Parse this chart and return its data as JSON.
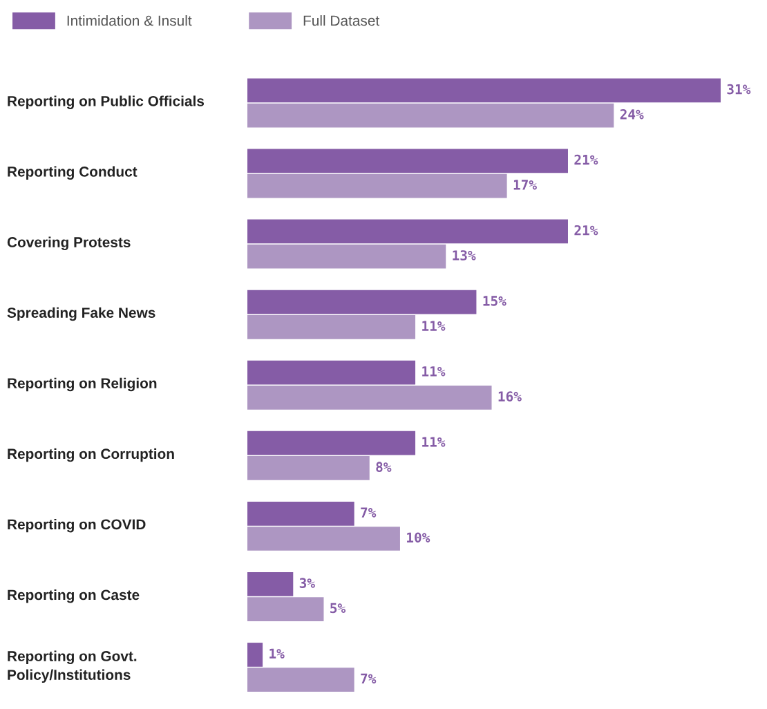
{
  "chart_data": {
    "type": "bar",
    "orientation": "horizontal",
    "legend": "top left",
    "categories": [
      "Reporting on Public Officials",
      "Reporting Conduct",
      "Covering Protests",
      "Spreading Fake News",
      "Reporting on Religion",
      "Reporting on Corruption",
      "Reporting on COVID",
      "Reporting on Caste",
      "Reporting on Govt.\nPolicy/Institutions"
    ],
    "series": [
      {
        "name": "Intimidation & Insult",
        "color": "#855ca6",
        "values": [
          31,
          21,
          21,
          15,
          11,
          11,
          7,
          3,
          1
        ],
        "value_labels": [
          "31%",
          "21%",
          "21%",
          "15%",
          "11%",
          "11%",
          "7%",
          "3%",
          "1%"
        ]
      },
      {
        "name": "Full Dataset",
        "color": "#ad96c2",
        "values": [
          24,
          17,
          13,
          11,
          16,
          8,
          10,
          5,
          7
        ],
        "value_labels": [
          "24%",
          "17%",
          "13%",
          "11%",
          "16%",
          "8%",
          "10%",
          "5%",
          "7%"
        ]
      }
    ]
  }
}
